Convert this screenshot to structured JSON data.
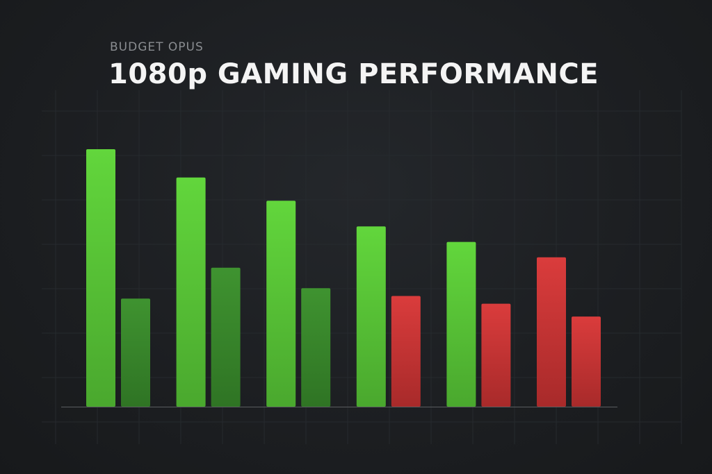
{
  "header": {
    "subtitle": "BUDGET OPUS",
    "title": "1080p GAMING PERFORMANCE"
  },
  "colors": {
    "bright_green": "#5fce3a",
    "dark_green": "#3a8a2a",
    "bright_red": "#d63a3a",
    "dark_red": "#b8302f",
    "baseline": "#5a5d60",
    "grid": "#262a2e"
  },
  "chart_data": {
    "type": "bar",
    "title": "1080p GAMING PERFORMANCE",
    "subtitle": "BUDGET OPUS",
    "categories": [
      "",
      "",
      "",
      "",
      "",
      ""
    ],
    "series": [
      {
        "values": [
          100,
          89,
          80,
          70,
          64,
          58
        ],
        "colors": [
          "#5fce3a",
          "#5fce3a",
          "#5fce3a",
          "#5fce3a",
          "#5fce3a",
          "#d63a3a"
        ]
      },
      {
        "values": [
          42,
          54,
          46,
          43,
          40,
          35
        ],
        "colors": [
          "#3a8a2a",
          "#3a8a2a",
          "#3a8a2a",
          "#d63a3a",
          "#d63a3a",
          "#b8302f"
        ]
      }
    ],
    "ylim": [
      0,
      100
    ],
    "grid": true,
    "legend": "none",
    "xlabel": "",
    "ylabel": ""
  }
}
